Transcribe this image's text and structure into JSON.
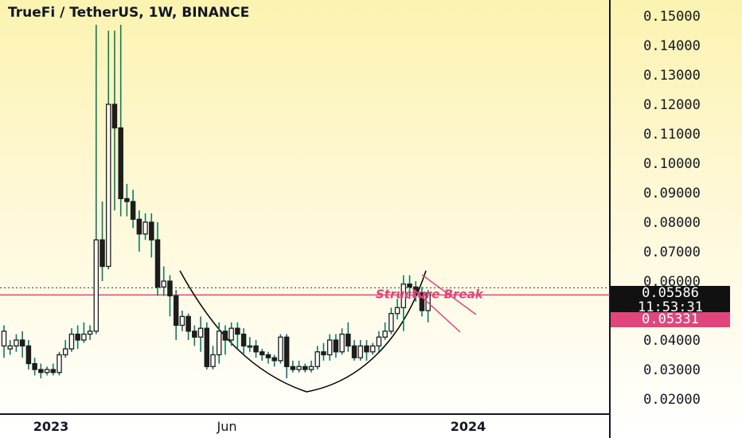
{
  "header": {
    "title": "TrueFi / TetherUS, 1W, BINANCE"
  },
  "price_axis": {
    "last_price": "0.05586",
    "countdown": "11:53:31",
    "marker_price": "0.05331"
  },
  "annotation": {
    "text": "Structure Break"
  },
  "colors": {
    "background_top": "#fbf3b0",
    "candle_body": "#1d1d1d",
    "wick": "#0a7a66",
    "structure_line": "#e0457b",
    "pattern_curve": "#000000"
  },
  "chart_data": {
    "type": "candlestick",
    "title": "TrueFi / TetherUS, 1W, BINANCE",
    "ylim": [
      0.015,
      0.158
    ],
    "y_ticks": [
      "0.15000",
      "0.14000",
      "0.13000",
      "0.12000",
      "0.11000",
      "0.10000",
      "0.09000",
      "0.08000",
      "0.07000",
      "0.06000",
      "0.05000",
      "0.04000",
      "0.03000",
      "0.02000"
    ],
    "x_ticks": [
      "2023",
      "Jun",
      "2024"
    ],
    "structure_level": 0.0553,
    "last_price": 0.05586,
    "candles": [
      [
        0.038,
        0.043,
        0.034,
        0.045
      ],
      [
        0.037,
        0.038,
        0.035,
        0.04
      ],
      [
        0.038,
        0.04,
        0.036,
        0.042
      ],
      [
        0.04,
        0.038,
        0.034,
        0.043
      ],
      [
        0.038,
        0.032,
        0.03,
        0.04
      ],
      [
        0.032,
        0.03,
        0.028,
        0.034
      ],
      [
        0.03,
        0.029,
        0.027,
        0.032
      ],
      [
        0.029,
        0.03,
        0.028,
        0.031
      ],
      [
        0.03,
        0.029,
        0.028,
        0.032
      ],
      [
        0.029,
        0.035,
        0.028,
        0.036
      ],
      [
        0.035,
        0.037,
        0.034,
        0.04
      ],
      [
        0.037,
        0.042,
        0.036,
        0.044
      ],
      [
        0.042,
        0.04,
        0.037,
        0.045
      ],
      [
        0.04,
        0.042,
        0.039,
        0.046
      ],
      [
        0.042,
        0.043,
        0.04,
        0.045
      ],
      [
        0.043,
        0.074,
        0.042,
        0.147
      ],
      [
        0.074,
        0.065,
        0.06,
        0.087
      ],
      [
        0.065,
        0.12,
        0.064,
        0.145
      ],
      [
        0.12,
        0.112,
        0.084,
        0.145
      ],
      [
        0.112,
        0.088,
        0.082,
        0.147
      ],
      [
        0.088,
        0.087,
        0.082,
        0.093
      ],
      [
        0.087,
        0.081,
        0.078,
        0.091
      ],
      [
        0.081,
        0.076,
        0.07,
        0.084
      ],
      [
        0.076,
        0.08,
        0.074,
        0.083
      ],
      [
        0.08,
        0.074,
        0.068,
        0.083
      ],
      [
        0.074,
        0.058,
        0.055,
        0.08
      ],
      [
        0.058,
        0.06,
        0.055,
        0.065
      ],
      [
        0.06,
        0.055,
        0.048,
        0.062
      ],
      [
        0.055,
        0.045,
        0.04,
        0.057
      ],
      [
        0.045,
        0.048,
        0.043,
        0.05
      ],
      [
        0.048,
        0.043,
        0.04,
        0.049
      ],
      [
        0.043,
        0.041,
        0.038,
        0.045
      ],
      [
        0.041,
        0.044,
        0.036,
        0.048
      ],
      [
        0.044,
        0.031,
        0.03,
        0.046
      ],
      [
        0.031,
        0.035,
        0.03,
        0.038
      ],
      [
        0.035,
        0.043,
        0.032,
        0.046
      ],
      [
        0.043,
        0.04,
        0.035,
        0.045
      ],
      [
        0.04,
        0.044,
        0.038,
        0.046
      ],
      [
        0.044,
        0.042,
        0.037,
        0.046
      ],
      [
        0.042,
        0.038,
        0.035,
        0.044
      ],
      [
        0.038,
        0.038,
        0.036,
        0.041
      ],
      [
        0.038,
        0.036,
        0.034,
        0.04
      ],
      [
        0.036,
        0.035,
        0.033,
        0.037
      ],
      [
        0.035,
        0.034,
        0.032,
        0.036
      ],
      [
        0.034,
        0.033,
        0.031,
        0.035
      ],
      [
        0.033,
        0.041,
        0.032,
        0.042
      ],
      [
        0.041,
        0.031,
        0.027,
        0.042
      ],
      [
        0.031,
        0.03,
        0.029,
        0.033
      ],
      [
        0.03,
        0.031,
        0.029,
        0.033
      ],
      [
        0.031,
        0.03,
        0.029,
        0.032
      ],
      [
        0.03,
        0.031,
        0.029,
        0.033
      ],
      [
        0.031,
        0.036,
        0.03,
        0.038
      ],
      [
        0.036,
        0.035,
        0.033,
        0.039
      ],
      [
        0.035,
        0.04,
        0.033,
        0.042
      ],
      [
        0.04,
        0.036,
        0.034,
        0.042
      ],
      [
        0.036,
        0.042,
        0.035,
        0.044
      ],
      [
        0.042,
        0.038,
        0.036,
        0.046
      ],
      [
        0.038,
        0.034,
        0.033,
        0.04
      ],
      [
        0.034,
        0.038,
        0.033,
        0.04
      ],
      [
        0.038,
        0.036,
        0.033,
        0.04
      ],
      [
        0.036,
        0.038,
        0.035,
        0.039
      ],
      [
        0.038,
        0.041,
        0.036,
        0.043
      ],
      [
        0.041,
        0.043,
        0.04,
        0.046
      ],
      [
        0.043,
        0.049,
        0.042,
        0.051
      ],
      [
        0.049,
        0.051,
        0.047,
        0.054
      ],
      [
        0.051,
        0.059,
        0.043,
        0.062
      ],
      [
        0.059,
        0.058,
        0.054,
        0.062
      ],
      [
        0.058,
        0.056,
        0.053,
        0.06
      ],
      [
        0.056,
        0.05,
        0.048,
        0.058
      ],
      [
        0.05,
        0.056,
        0.046,
        0.057
      ]
    ]
  }
}
